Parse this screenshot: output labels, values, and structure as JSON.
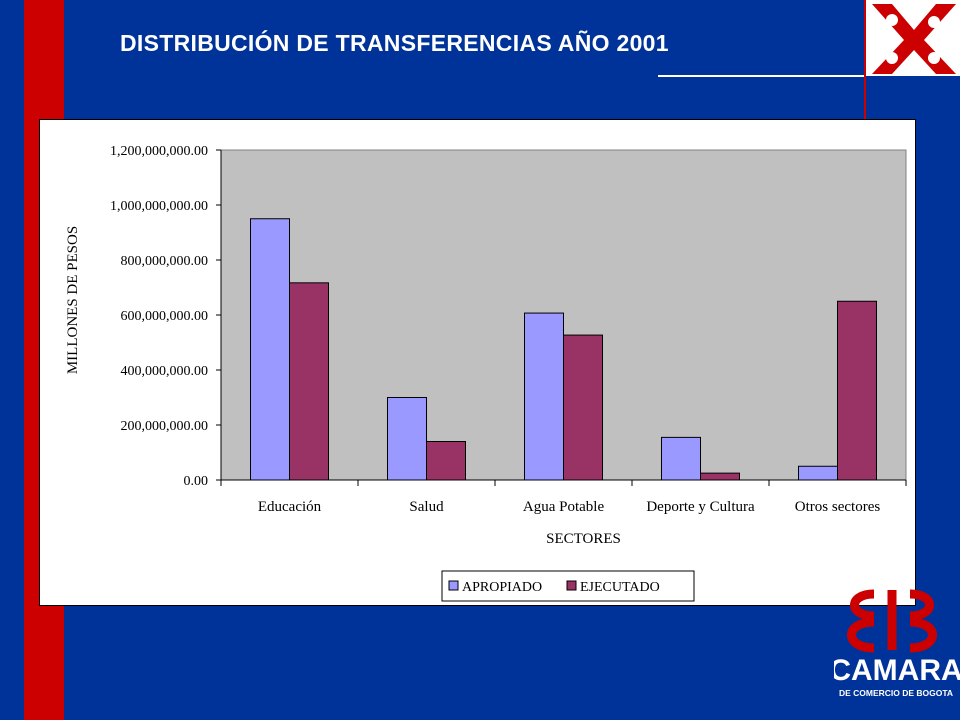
{
  "slide": {
    "title": "DISTRIBUCIÓN DE TRANSFERENCIAS AÑO 2001",
    "brand_name": "CAMARA",
    "brand_subtitle": "DE COMERCIO DE BOGOTA",
    "colors": {
      "background": "#003399",
      "accent_red": "#cc0000",
      "title": "#ffffff"
    }
  },
  "chart_data": {
    "type": "bar",
    "title": "",
    "xlabel": "SECTORES",
    "ylabel": "MILLONES DE PESOS",
    "categories": [
      "Educación",
      "Salud",
      "Agua Potable",
      "Deporte y Cultura",
      "Otros sectores"
    ],
    "series": [
      {
        "name": "APROPIADO",
        "color": "#9999ff",
        "values": [
          950000000,
          300000000,
          607000000,
          155000000,
          50000000
        ]
      },
      {
        "name": "EJECUTADO",
        "color": "#993366",
        "values": [
          717000000,
          140000000,
          527000000,
          25000000,
          650000000
        ]
      }
    ],
    "yticks": [
      "0.00",
      "200,000,000.00",
      "400,000,000.00",
      "600,000,000.00",
      "800,000,000.00",
      "1,000,000,000.00",
      "1,200,000,000.00"
    ],
    "ylim": [
      0,
      1200000000
    ],
    "plot_background": "#c0c0c0",
    "grid": false,
    "legend_position": "bottom"
  }
}
